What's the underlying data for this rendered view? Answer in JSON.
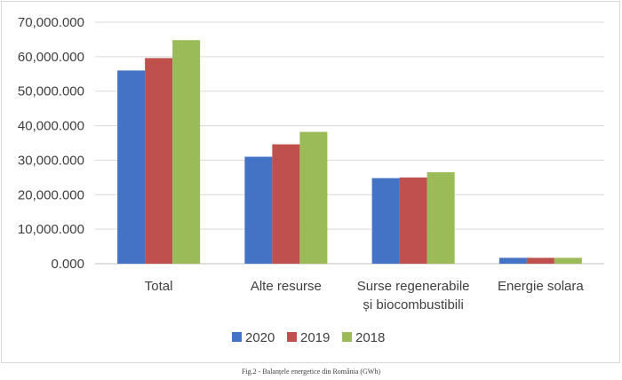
{
  "chart_data": {
    "type": "bar",
    "title": "",
    "xlabel": "",
    "ylabel": "",
    "categories": [
      "Total",
      "Alte resurse",
      "Surse regenerabile și biocombustibili",
      "Energie solara"
    ],
    "category_lines": [
      [
        "Total"
      ],
      [
        "Alte resurse"
      ],
      [
        "Surse regenerabile",
        "și biocombustibili"
      ],
      [
        "Energie solara"
      ]
    ],
    "series": [
      {
        "name": "2020",
        "color": "#4472C4",
        "values": [
          56000,
          31000,
          24800,
          1700
        ]
      },
      {
        "name": "2019",
        "color": "#C0504D",
        "values": [
          59600,
          34600,
          25000,
          1700
        ]
      },
      {
        "name": "2018",
        "color": "#9BBB59",
        "values": [
          64800,
          38200,
          26500,
          1700
        ]
      }
    ],
    "ylim": [
      0,
      70000
    ],
    "y_ticks": [
      {
        "value": 0,
        "label": "0.000"
      },
      {
        "value": 10000,
        "label": "10,000.000"
      },
      {
        "value": 20000,
        "label": "20,000.000"
      },
      {
        "value": 30000,
        "label": "30,000.000"
      },
      {
        "value": 40000,
        "label": "40,000.000"
      },
      {
        "value": 50000,
        "label": "50,000.000"
      },
      {
        "value": 60000,
        "label": "60,000.000"
      },
      {
        "value": 70000,
        "label": "70,000.000"
      }
    ],
    "grid": true,
    "legend_position": "bottom"
  },
  "caption": "Fig.2 - Balanțele energetice din România (GWh)"
}
